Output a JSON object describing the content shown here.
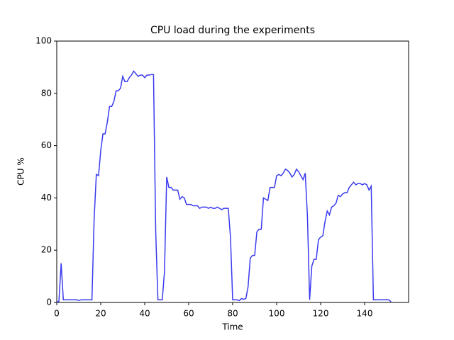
{
  "chart_data": {
    "type": "line",
    "title": "CPU load during the experiments",
    "xlabel": "Time",
    "ylabel": "CPU %",
    "x": [
      0,
      1,
      2,
      3,
      4,
      5,
      6,
      7,
      8,
      9,
      10,
      11,
      12,
      13,
      14,
      15,
      16,
      17,
      18,
      19,
      20,
      21,
      22,
      23,
      24,
      25,
      26,
      27,
      28,
      29,
      30,
      31,
      32,
      33,
      34,
      35,
      36,
      37,
      38,
      39,
      40,
      41,
      42,
      43,
      44,
      45,
      46,
      47,
      48,
      49,
      50,
      51,
      52,
      53,
      54,
      55,
      56,
      57,
      58,
      59,
      60,
      61,
      62,
      63,
      64,
      65,
      66,
      67,
      68,
      69,
      70,
      71,
      72,
      73,
      74,
      75,
      76,
      77,
      78,
      79,
      80,
      81,
      82,
      83,
      84,
      85,
      86,
      87,
      88,
      89,
      90,
      91,
      92,
      93,
      94,
      95,
      96,
      97,
      98,
      99,
      100,
      101,
      102,
      103,
      104,
      105,
      106,
      107,
      108,
      109,
      110,
      111,
      112,
      113,
      114,
      115,
      116,
      117,
      118,
      119,
      120,
      121,
      122,
      123,
      124,
      125,
      126,
      127,
      128,
      129,
      130,
      131,
      132,
      133,
      134,
      135,
      136,
      137,
      138,
      139,
      140,
      141,
      142,
      143,
      144,
      145,
      146,
      147,
      148,
      149,
      150,
      151,
      152
    ],
    "series": [
      {
        "name": "CPU",
        "color": "#3b3bef",
        "values": [
          0,
          0.5,
          15,
          1,
          1,
          1,
          1,
          1,
          1,
          1,
          0.8,
          1,
          1,
          1,
          1,
          1,
          1,
          32,
          49,
          48.5,
          58,
          64.5,
          64.5,
          69,
          75,
          75,
          77,
          81,
          81,
          82,
          86.5,
          84.5,
          84.5,
          86,
          87,
          88.5,
          87.5,
          86.5,
          87,
          87,
          86,
          87,
          87,
          87.2,
          87.2,
          27,
          1,
          1,
          1,
          12,
          48,
          44,
          44,
          43,
          43,
          43,
          39.5,
          40.5,
          40,
          37.5,
          37.5,
          37.5,
          37,
          37,
          37,
          36,
          36.5,
          36.5,
          36.5,
          36,
          36.5,
          36,
          36,
          36.5,
          36,
          35.5,
          36,
          36,
          36,
          25,
          1,
          1,
          1,
          0.7,
          1.5,
          1.2,
          1.5,
          6,
          17,
          18,
          18,
          27,
          28,
          28,
          40,
          39.5,
          39,
          44,
          44,
          44,
          48.5,
          49,
          48.5,
          49.5,
          51,
          50.5,
          49.5,
          48,
          49,
          51,
          50,
          48.5,
          47,
          49.5,
          33,
          1,
          14,
          16.5,
          16.5,
          24,
          25,
          25.5,
          31,
          35,
          33.5,
          36.5,
          37,
          38,
          41,
          40.5,
          41.5,
          42,
          42,
          44,
          45,
          46,
          45,
          45.5,
          45.5,
          45,
          45.5,
          45,
          43,
          44.5,
          1,
          1,
          1,
          1,
          1,
          1,
          1,
          1,
          0.3
        ]
      }
    ],
    "xlim": [
      0,
      160
    ],
    "ylim": [
      0,
      100
    ],
    "xticks": [
      0,
      20,
      40,
      60,
      80,
      100,
      120,
      140
    ],
    "yticks": [
      0,
      20,
      40,
      60,
      80,
      100
    ],
    "grid": false
  }
}
